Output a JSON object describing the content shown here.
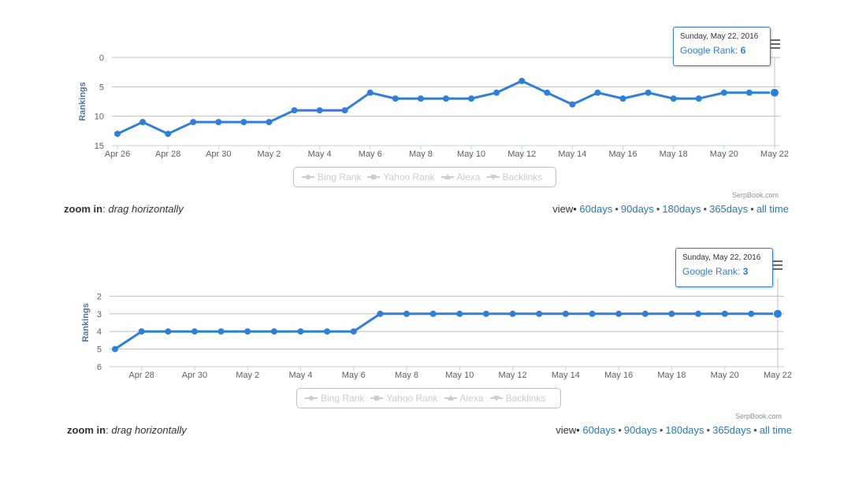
{
  "chart_data": [
    {
      "type": "line",
      "ylabel": "Rankings",
      "ylim": [
        0,
        15
      ],
      "y_reversed": true,
      "yticks": [
        0,
        5,
        10,
        15
      ],
      "grid": true,
      "x_tick_labels": [
        "Apr 26",
        "Apr 28",
        "Apr 30",
        "May 2",
        "May 4",
        "May 6",
        "May 8",
        "May 10",
        "May 12",
        "May 14",
        "May 16",
        "May 18",
        "May 20",
        "May 22"
      ],
      "series": [
        {
          "name": "Google Rank",
          "color": "#2f7ed8",
          "x": [
            "Apr 26",
            "Apr 27",
            "Apr 28",
            "Apr 29",
            "Apr 30",
            "May 1",
            "May 2",
            "May 3",
            "May 4",
            "May 5",
            "May 6",
            "May 7",
            "May 8",
            "May 9",
            "May 10",
            "May 11",
            "May 12",
            "May 13",
            "May 14",
            "May 15",
            "May 16",
            "May 17",
            "May 18",
            "May 19",
            "May 20",
            "May 21",
            "May 22"
          ],
          "values": [
            13,
            11,
            13,
            11,
            11,
            11,
            11,
            9,
            9,
            9,
            6,
            7,
            7,
            7,
            7,
            6,
            4,
            6,
            8,
            6,
            7,
            6,
            7,
            7,
            6,
            6,
            6
          ]
        }
      ],
      "legend": [
        "Bing Rank",
        "Yahoo Rank",
        "Alexa",
        "Backlinks"
      ],
      "legend_placement": "bottom-center",
      "credits": "SerpBook.com",
      "tooltip": {
        "date": "Sunday, May 22, 2016",
        "series": "Google Rank",
        "value": "6"
      }
    },
    {
      "type": "line",
      "ylabel": "Rankings",
      "ylim": [
        1,
        6
      ],
      "y_reversed": true,
      "yticks": [
        2,
        3,
        4,
        5,
        6
      ],
      "grid": true,
      "x_tick_labels": [
        "Apr 28",
        "Apr 30",
        "May 2",
        "May 4",
        "May 6",
        "May 8",
        "May 10",
        "May 12",
        "May 14",
        "May 16",
        "May 18",
        "May 20",
        "May 22"
      ],
      "series": [
        {
          "name": "Google Rank",
          "color": "#2f7ed8",
          "x": [
            "Apr 27",
            "Apr 28",
            "Apr 29",
            "Apr 30",
            "May 1",
            "May 2",
            "May 3",
            "May 4",
            "May 5",
            "May 6",
            "May 7",
            "May 8",
            "May 9",
            "May 10",
            "May 11",
            "May 12",
            "May 13",
            "May 14",
            "May 15",
            "May 16",
            "May 17",
            "May 18",
            "May 19",
            "May 20",
            "May 21",
            "May 22"
          ],
          "values": [
            5,
            4,
            4,
            4,
            4,
            4,
            4,
            4,
            4,
            4,
            3,
            3,
            3,
            3,
            3,
            3,
            3,
            3,
            3,
            3,
            3,
            3,
            3,
            3,
            3,
            3
          ]
        }
      ],
      "legend": [
        "Bing Rank",
        "Yahoo Rank",
        "Alexa",
        "Backlinks"
      ],
      "legend_placement": "bottom-center",
      "credits": "SerpBook.com",
      "tooltip": {
        "date": "Sunday, May 22, 2016",
        "series": "Google Rank",
        "value": "3"
      }
    }
  ],
  "footer": [
    {
      "zoom_bold": "zoom in",
      "zoom_sep": ": ",
      "zoom_italic": "drag horizontally",
      "view_label": "view",
      "view_bullet": "•",
      "links": [
        "60days",
        "90days",
        "180days",
        "365days",
        "all time"
      ]
    },
    {
      "zoom_bold": "zoom in",
      "zoom_sep": ": ",
      "zoom_italic": "drag horizontally",
      "view_label": "view",
      "view_bullet": "•",
      "links": [
        "60days",
        "90days",
        "180days",
        "365days",
        "all time"
      ]
    }
  ]
}
